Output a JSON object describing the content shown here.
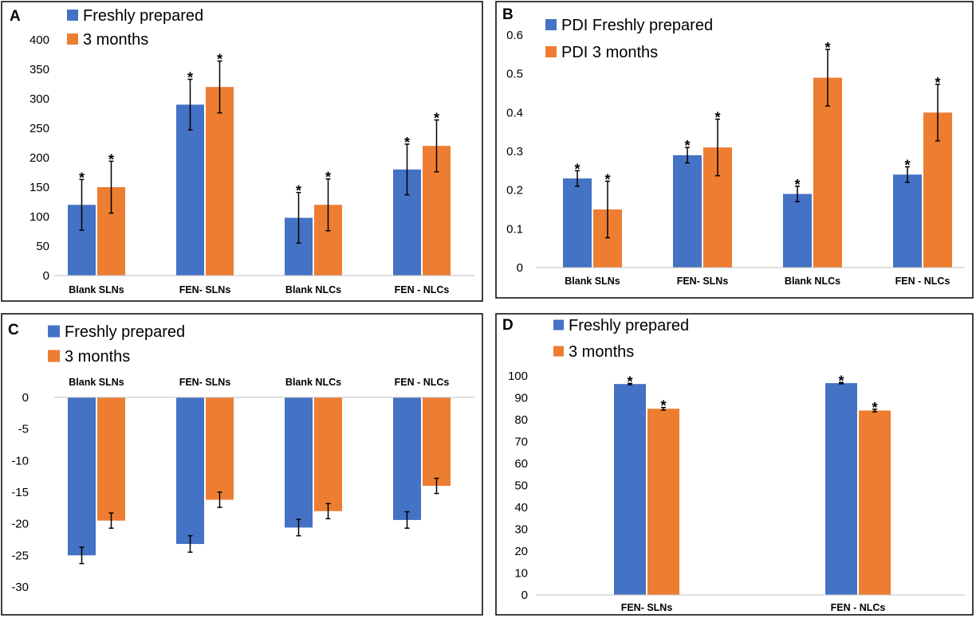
{
  "colors": {
    "fresh": "#4472c4",
    "months": "#ed7d31",
    "border": "#000000",
    "error_bar": "#000000"
  },
  "chart_data": [
    {
      "panel": "A",
      "type": "bar",
      "categories": [
        "Blank SLNs",
        "FEN- SLNs",
        "Blank NLCs",
        "FEN - NLCs"
      ],
      "series": [
        {
          "name": "Freshly prepared",
          "values": [
            120,
            290,
            98,
            180
          ],
          "errors": [
            43,
            43,
            43,
            43
          ]
        },
        {
          "name": "3 months",
          "values": [
            150,
            320,
            120,
            220
          ],
          "errors": [
            44,
            44,
            44,
            44
          ]
        }
      ],
      "ylim": [
        0,
        400
      ],
      "yticks": [
        0,
        50,
        100,
        150,
        200,
        250,
        300,
        350,
        400
      ],
      "yticklabels": [
        "0",
        "50",
        "100",
        "150",
        "200",
        "250",
        "300",
        "350",
        "400"
      ],
      "significance_marker": "*",
      "legend_position": "top-left",
      "category_labels_position": "bottom",
      "grid": false
    },
    {
      "panel": "B",
      "type": "bar",
      "categories": [
        "Blank SLNs",
        "FEN- SLNs",
        "Blank NLCs",
        "FEN - NLCs"
      ],
      "series": [
        {
          "name": "PDI  Freshly prepared",
          "values": [
            0.23,
            0.29,
            0.19,
            0.24
          ],
          "errors": [
            0.02,
            0.02,
            0.02,
            0.02
          ]
        },
        {
          "name": "PDI  3 months",
          "values": [
            0.15,
            0.31,
            0.49,
            0.4
          ],
          "errors": [
            0.073,
            0.073,
            0.073,
            0.073
          ]
        }
      ],
      "ylim": [
        0,
        0.6
      ],
      "yticks": [
        0,
        0.1,
        0.2,
        0.3,
        0.4,
        0.5,
        0.6
      ],
      "yticklabels": [
        "0",
        "0.1",
        "0.2",
        "0.3",
        "0.4",
        "0.5",
        "0.6"
      ],
      "significance_marker": "*",
      "legend_position": "top-left",
      "category_labels_position": "bottom",
      "grid": false
    },
    {
      "panel": "C",
      "type": "bar",
      "categories": [
        "Blank SLNs",
        "FEN- SLNs",
        "Blank NLCs",
        "FEN - NLCs"
      ],
      "series": [
        {
          "name": "Freshly prepared",
          "values": [
            -25,
            -23.2,
            -20.6,
            -19.4
          ],
          "errors": [
            1.3,
            1.3,
            1.3,
            1.3
          ]
        },
        {
          "name": "3 months",
          "values": [
            -19.5,
            -16.2,
            -18,
            -14
          ],
          "errors": [
            1.2,
            1.2,
            1.2,
            1.2
          ]
        }
      ],
      "ylim": [
        -30,
        0
      ],
      "yticks": [
        0,
        -5,
        -10,
        -15,
        -20,
        -25,
        -30
      ],
      "yticklabels": [
        "0",
        "-5",
        "-10",
        "-15",
        "-20",
        "-25",
        "-30"
      ],
      "legend_position": "top-left",
      "category_labels_position": "top",
      "grid": false
    },
    {
      "panel": "D",
      "type": "bar",
      "categories": [
        "FEN- SLNs",
        "FEN - NLCs"
      ],
      "series": [
        {
          "name": "Freshly prepared",
          "values": [
            96.3,
            96.7
          ],
          "errors": [
            0.3,
            0.3
          ]
        },
        {
          "name": "3 months",
          "values": [
            85,
            84.2
          ],
          "errors": [
            0.6,
            0.6
          ]
        }
      ],
      "ylim": [
        0,
        100
      ],
      "yticks": [
        0,
        10,
        20,
        30,
        40,
        50,
        60,
        70,
        80,
        90,
        100
      ],
      "yticklabels": [
        "0",
        "10",
        "20",
        "30",
        "40",
        "50",
        "60",
        "70",
        "80",
        "90",
        "100"
      ],
      "significance_marker": "*",
      "legend_position": "top-left",
      "category_labels_position": "bottom",
      "grid": false
    }
  ]
}
